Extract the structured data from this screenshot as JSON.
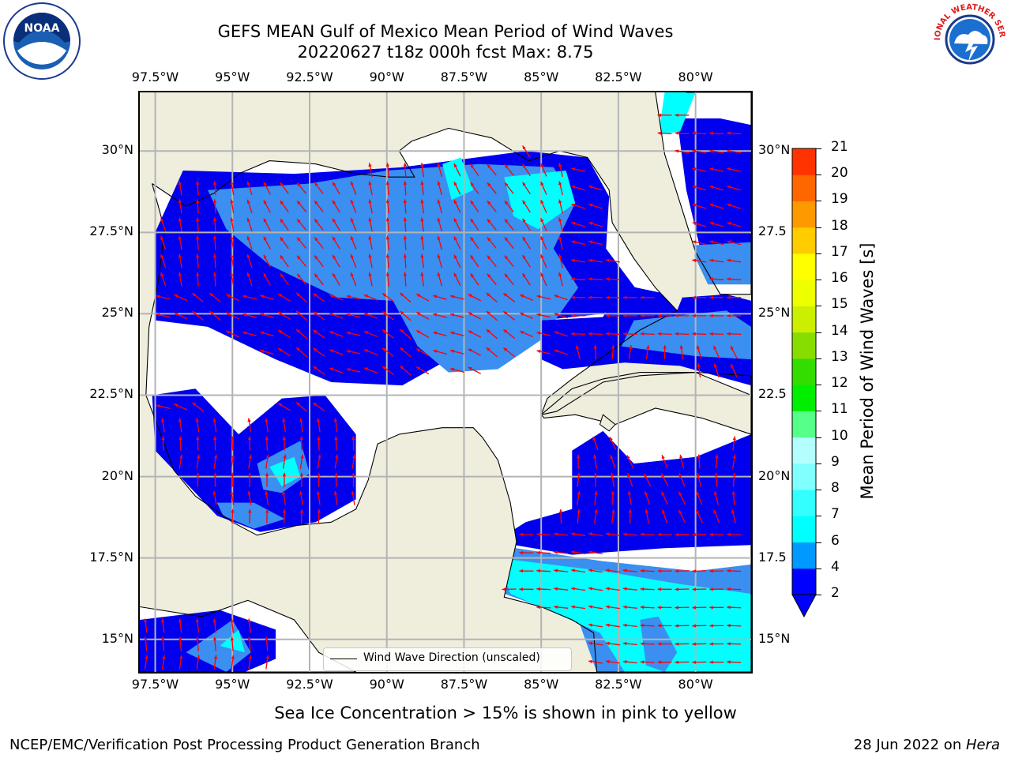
{
  "title_line1": "GEFS MEAN Gulf of Mexico Mean Period of Wind Waves",
  "title_line2": "20220627 t18z 000h fcst   Max: 8.75",
  "lon_ticks": [
    "97.5°W",
    "95°W",
    "92.5°W",
    "90°W",
    "87.5°W",
    "85°W",
    "82.5°W",
    "80°W"
  ],
  "lat_ticks_left": [
    "30°N",
    "27.5°N",
    "25°N",
    "22.5°N",
    "20°N",
    "17.5°N",
    "15°N"
  ],
  "lat_ticks_right": [
    "30°N",
    "27.5",
    "25°N",
    "22.5",
    "20°N",
    "17.5",
    "15°N"
  ],
  "legend_label": "Wind Wave Direction (unscaled)",
  "sea_ice_note": "Sea Ice Concentration > 15% is shown in pink to yellow",
  "footer_left": "NCEP/EMC/Verification Post Processing Product Generation Branch",
  "footer_right_date": "28 Jun 2022 on ",
  "footer_right_host": "Hera",
  "noaa_logo_text": "NOAA",
  "nws_logo_text": "NATIONAL WEATHER SERVICE",
  "colors": {
    "land": "#efeddc",
    "ocean_no_waves": "#ffffff",
    "period_2_4": "#0000ee",
    "period_4_6": "#3a8ff0",
    "period_6_8": "#00ffff",
    "period_8_10": "#aaffff",
    "arrows": "#ff0000",
    "grid": "#b4b4b4"
  },
  "map_data": {
    "lon_range": [
      -98.0,
      -78.2
    ],
    "lat_range": [
      14.0,
      31.8
    ],
    "grid_lons": [
      -97.5,
      -95,
      -92.5,
      -90,
      -87.5,
      -85,
      -82.5,
      -80
    ],
    "grid_lats": [
      30,
      27.5,
      25,
      22.5,
      20,
      17.5,
      15
    ],
    "max_period": 8.75
  },
  "colorbar": {
    "label": "Mean Period of Wind Waves [s]",
    "tick_labels": [
      "2",
      "4",
      "6",
      "7",
      "8",
      "9",
      "10",
      "11",
      "12",
      "13",
      "14",
      "15",
      "16",
      "17",
      "18",
      "19",
      "20",
      "21"
    ],
    "levels": [
      2,
      4,
      6,
      7,
      8,
      9,
      10,
      11,
      12,
      13,
      14,
      15,
      16,
      17,
      18,
      19,
      20,
      21
    ],
    "segment_colors": [
      "#0000ff",
      "#0099ff",
      "#00ffff",
      "#33ffff",
      "#80ffff",
      "#b3ffff",
      "#55ff88",
      "#00ee00",
      "#33dd00",
      "#88dd00",
      "#ccee00",
      "#eeff00",
      "#ffff00",
      "#ffcc00",
      "#ff9900",
      "#ff6600",
      "#ff3300"
    ],
    "extend_color": "#0000ff"
  }
}
